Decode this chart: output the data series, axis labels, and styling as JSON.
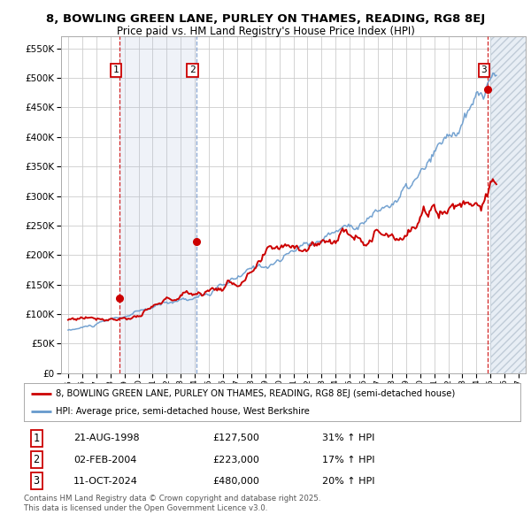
{
  "title": "8, BOWLING GREEN LANE, PURLEY ON THAMES, READING, RG8 8EJ",
  "subtitle": "Price paid vs. HM Land Registry's House Price Index (HPI)",
  "hpi_label": "HPI: Average price, semi-detached house, West Berkshire",
  "property_label": "8, BOWLING GREEN LANE, PURLEY ON THAMES, READING, RG8 8EJ (semi-detached house)",
  "red_color": "#cc0000",
  "blue_color": "#6699cc",
  "sale_dates": [
    1998.64,
    2004.09,
    2024.78
  ],
  "sale_prices": [
    127500,
    223000,
    480000
  ],
  "sale_labels": [
    "1",
    "2",
    "3"
  ],
  "sale_date_strs": [
    "21-AUG-1998",
    "02-FEB-2004",
    "11-OCT-2024"
  ],
  "sale_price_strs": [
    "£127,500",
    "£223,000",
    "£480,000"
  ],
  "sale_hpi_strs": [
    "31% ↑ HPI",
    "17% ↑ HPI",
    "20% ↑ HPI"
  ],
  "ylim": [
    0,
    570000
  ],
  "xlim_start": 1994.5,
  "xlim_end": 2027.5,
  "footnote": "Contains HM Land Registry data © Crown copyright and database right 2025.\nThis data is licensed under the Open Government Licence v3.0.",
  "bg_color": "#ffffff",
  "grid_color": "#cccccc",
  "hatch_region_start": 2025.0,
  "hatch_region_end": 2027.5,
  "blue_band_start": 1998.64,
  "blue_band_end": 2004.09
}
